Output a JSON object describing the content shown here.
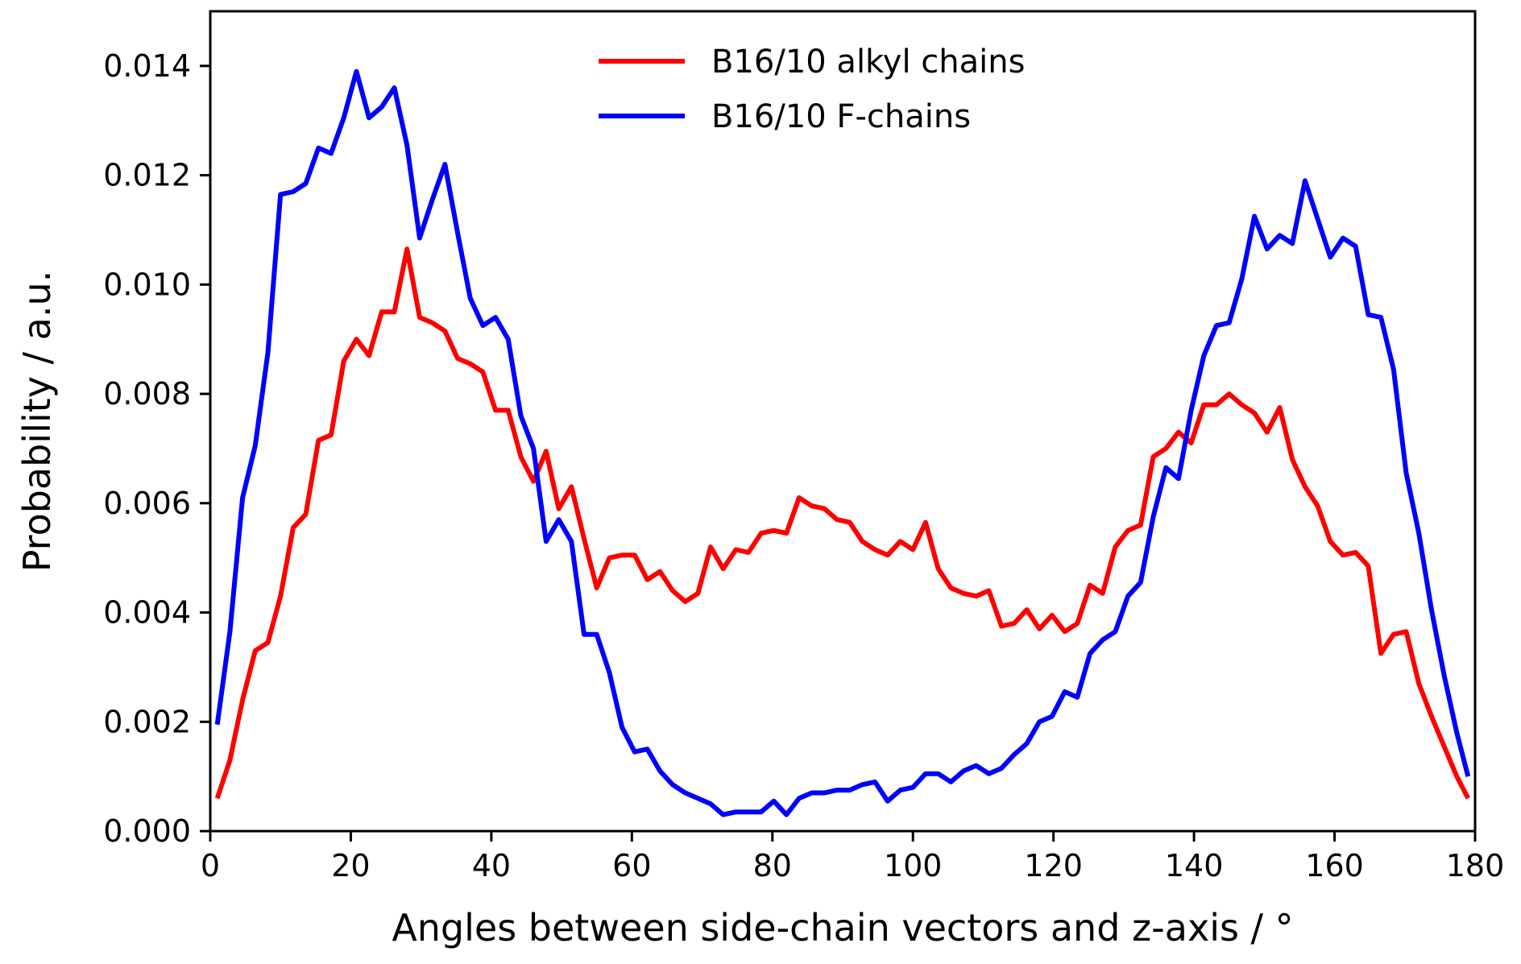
{
  "chart_data": {
    "type": "line",
    "title": "",
    "xlabel": "Angles between side-chain vectors and z-axis / °",
    "ylabel": "Probability / a.u.",
    "xlim": [
      0,
      180
    ],
    "ylim": [
      0,
      0.015
    ],
    "x_ticks": [
      0,
      20,
      40,
      60,
      80,
      100,
      120,
      140,
      160,
      180
    ],
    "x_tick_labels": [
      "0",
      "20",
      "40",
      "60",
      "80",
      "100",
      "120",
      "140",
      "160",
      "180"
    ],
    "y_ticks": [
      0,
      0.002,
      0.004,
      0.006,
      0.008,
      0.01,
      0.012,
      0.014
    ],
    "y_tick_labels": [
      "0.000",
      "0.002",
      "0.004",
      "0.006",
      "0.008",
      "0.010",
      "0.012",
      "0.014"
    ],
    "grid": false,
    "legend_position": "top-center",
    "x": [
      1.0,
      2.8,
      4.6,
      6.4,
      8.2,
      10.0,
      11.8,
      13.6,
      15.4,
      17.2,
      19.0,
      20.8,
      22.6,
      24.4,
      26.2,
      28.0,
      29.8,
      31.6,
      33.4,
      35.2,
      37.0,
      38.8,
      40.6,
      42.4,
      44.2,
      46.0,
      47.8,
      49.6,
      51.4,
      53.2,
      55.0,
      56.8,
      58.6,
      60.4,
      62.2,
      64.0,
      65.8,
      67.6,
      69.4,
      71.2,
      73.0,
      74.8,
      76.6,
      78.4,
      80.2,
      82.0,
      83.8,
      85.6,
      87.4,
      89.2,
      91.0,
      92.8,
      94.6,
      96.4,
      98.2,
      100.0,
      101.8,
      103.6,
      105.4,
      107.2,
      109.0,
      110.8,
      112.6,
      114.4,
      116.2,
      118.0,
      119.8,
      121.6,
      123.4,
      125.2,
      127.0,
      128.8,
      130.6,
      132.4,
      134.2,
      136.0,
      137.8,
      139.6,
      141.4,
      143.2,
      145.0,
      146.8,
      148.6,
      150.4,
      152.2,
      154.0,
      155.8,
      157.6,
      159.4,
      161.2,
      163.0,
      164.8,
      166.6,
      168.4,
      170.2,
      172.0,
      173.8,
      175.6,
      177.4,
      179.0
    ],
    "series": [
      {
        "name": "B16/10 alkyl chains",
        "color": "#ff0000",
        "values": [
          0.0006,
          0.0013,
          0.0024,
          0.0033,
          0.00345,
          0.0043,
          0.00555,
          0.0058,
          0.00715,
          0.00725,
          0.0086,
          0.009,
          0.0087,
          0.0095,
          0.0095,
          0.01065,
          0.0094,
          0.0093,
          0.00915,
          0.00865,
          0.00855,
          0.0084,
          0.0077,
          0.0077,
          0.00685,
          0.0064,
          0.00695,
          0.0059,
          0.0063,
          0.00535,
          0.00445,
          0.005,
          0.00505,
          0.00505,
          0.0046,
          0.00475,
          0.0044,
          0.0042,
          0.00435,
          0.0052,
          0.0048,
          0.00515,
          0.0051,
          0.00545,
          0.0055,
          0.00545,
          0.0061,
          0.00595,
          0.0059,
          0.0057,
          0.00565,
          0.0053,
          0.00515,
          0.00505,
          0.0053,
          0.00515,
          0.00565,
          0.0048,
          0.00445,
          0.00435,
          0.0043,
          0.0044,
          0.00375,
          0.0038,
          0.00405,
          0.0037,
          0.00395,
          0.00365,
          0.0038,
          0.0045,
          0.00435,
          0.0052,
          0.0055,
          0.0056,
          0.00685,
          0.007,
          0.0073,
          0.0071,
          0.0078,
          0.0078,
          0.008,
          0.0078,
          0.00765,
          0.0073,
          0.00775,
          0.0068,
          0.0063,
          0.00595,
          0.0053,
          0.00505,
          0.0051,
          0.00485,
          0.00325,
          0.0036,
          0.00365,
          0.0027,
          0.0021,
          0.00155,
          0.001,
          0.0006
        ]
      },
      {
        "name": "B16/10 F-chains",
        "color": "#0000ff",
        "values": [
          0.00195,
          0.00365,
          0.0061,
          0.00705,
          0.00875,
          0.01165,
          0.0117,
          0.01185,
          0.0125,
          0.0124,
          0.01305,
          0.0139,
          0.01305,
          0.01325,
          0.0136,
          0.01255,
          0.01085,
          0.01155,
          0.0122,
          0.01095,
          0.00975,
          0.00925,
          0.0094,
          0.009,
          0.0076,
          0.007,
          0.0053,
          0.0057,
          0.0053,
          0.0036,
          0.0036,
          0.0029,
          0.0019,
          0.00145,
          0.0015,
          0.0011,
          0.00085,
          0.0007,
          0.0006,
          0.0005,
          0.0003,
          0.00035,
          0.00035,
          0.00035,
          0.00055,
          0.0003,
          0.0006,
          0.0007,
          0.0007,
          0.00075,
          0.00075,
          0.00085,
          0.0009,
          0.00055,
          0.00075,
          0.0008,
          0.00105,
          0.00105,
          0.0009,
          0.0011,
          0.0012,
          0.00105,
          0.00115,
          0.0014,
          0.0016,
          0.002,
          0.0021,
          0.00255,
          0.00245,
          0.00325,
          0.0035,
          0.00365,
          0.0043,
          0.00455,
          0.00575,
          0.00665,
          0.00645,
          0.0077,
          0.0087,
          0.00925,
          0.0093,
          0.0101,
          0.01125,
          0.01065,
          0.0109,
          0.01075,
          0.0119,
          0.0112,
          0.0105,
          0.01085,
          0.0107,
          0.00945,
          0.0094,
          0.00845,
          0.00655,
          0.00545,
          0.00405,
          0.00285,
          0.0018,
          0.001
        ]
      }
    ]
  }
}
